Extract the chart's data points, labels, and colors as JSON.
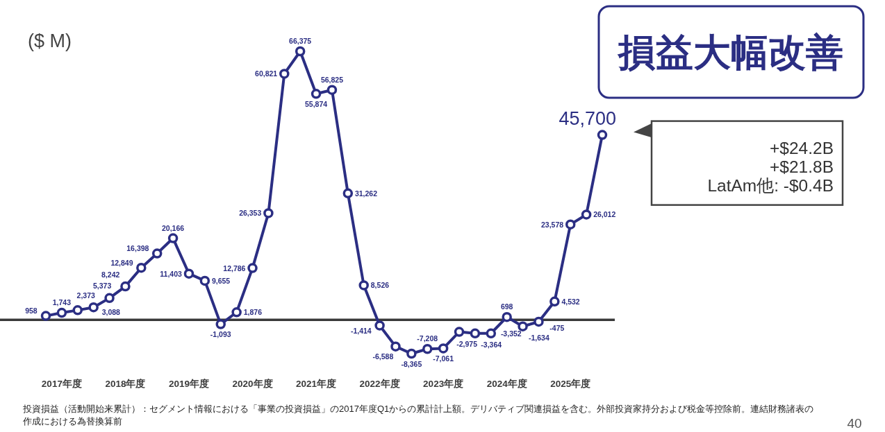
{
  "chart_data": {
    "type": "line",
    "title": "損益大幅改善",
    "ylabel": "($ M)",
    "categories": [
      null,
      "2017年度",
      null,
      null,
      null,
      "2018年度",
      null,
      null,
      null,
      "2019年度",
      null,
      null,
      null,
      "2020年度",
      null,
      null,
      null,
      "2021年度",
      null,
      null,
      null,
      "2022年度",
      null,
      null,
      null,
      "2023年度",
      null,
      null,
      null,
      "2024年度",
      null,
      null,
      null,
      "2025年度",
      null,
      null
    ],
    "values": [
      958,
      1743,
      2373,
      3088,
      5373,
      8242,
      12849,
      16398,
      20166,
      11403,
      9655,
      -1093,
      1876,
      12786,
      26353,
      60821,
      66375,
      55874,
      56825,
      31262,
      8526,
      -1414,
      -6588,
      -8365,
      -7208,
      -7061,
      -2975,
      -3364,
      -3352,
      698,
      -1634,
      -475,
      4532,
      23578,
      26012,
      45700
    ],
    "value_labels": [
      "958",
      "1,743",
      "2,373",
      "3,088",
      "5,373",
      "8,242",
      "12,849",
      "16,398",
      "20,166",
      "11,403",
      "9,655",
      "-1,093",
      "1,876",
      "12,786",
      "26,353",
      "60,821",
      "66,375",
      "55,874",
      "56,825",
      "31,262",
      "8,526",
      "-1,414",
      "-6,588",
      "-8,365",
      "-7,208",
      "-7,061",
      "-2,975",
      "-3,364",
      "-3,352",
      "698",
      "-1,634",
      "-475",
      "4,532",
      "23,578",
      "26,012",
      "45,700"
    ],
    "color": "#2b2e83",
    "marker": "circle",
    "annotations": [
      "+$24.2B",
      "+$21.8B",
      "LatAm他: -$0.4B",
      "投資損益（活動開始来累計）：セグメント情報における「事業の投資損益」の2017年度Q1からの累計計上額。デリバティブ関連損益を含む。外部投資家持分および税金等控除前。連結財務諸表の作成における為替換算前",
      "40"
    ]
  }
}
